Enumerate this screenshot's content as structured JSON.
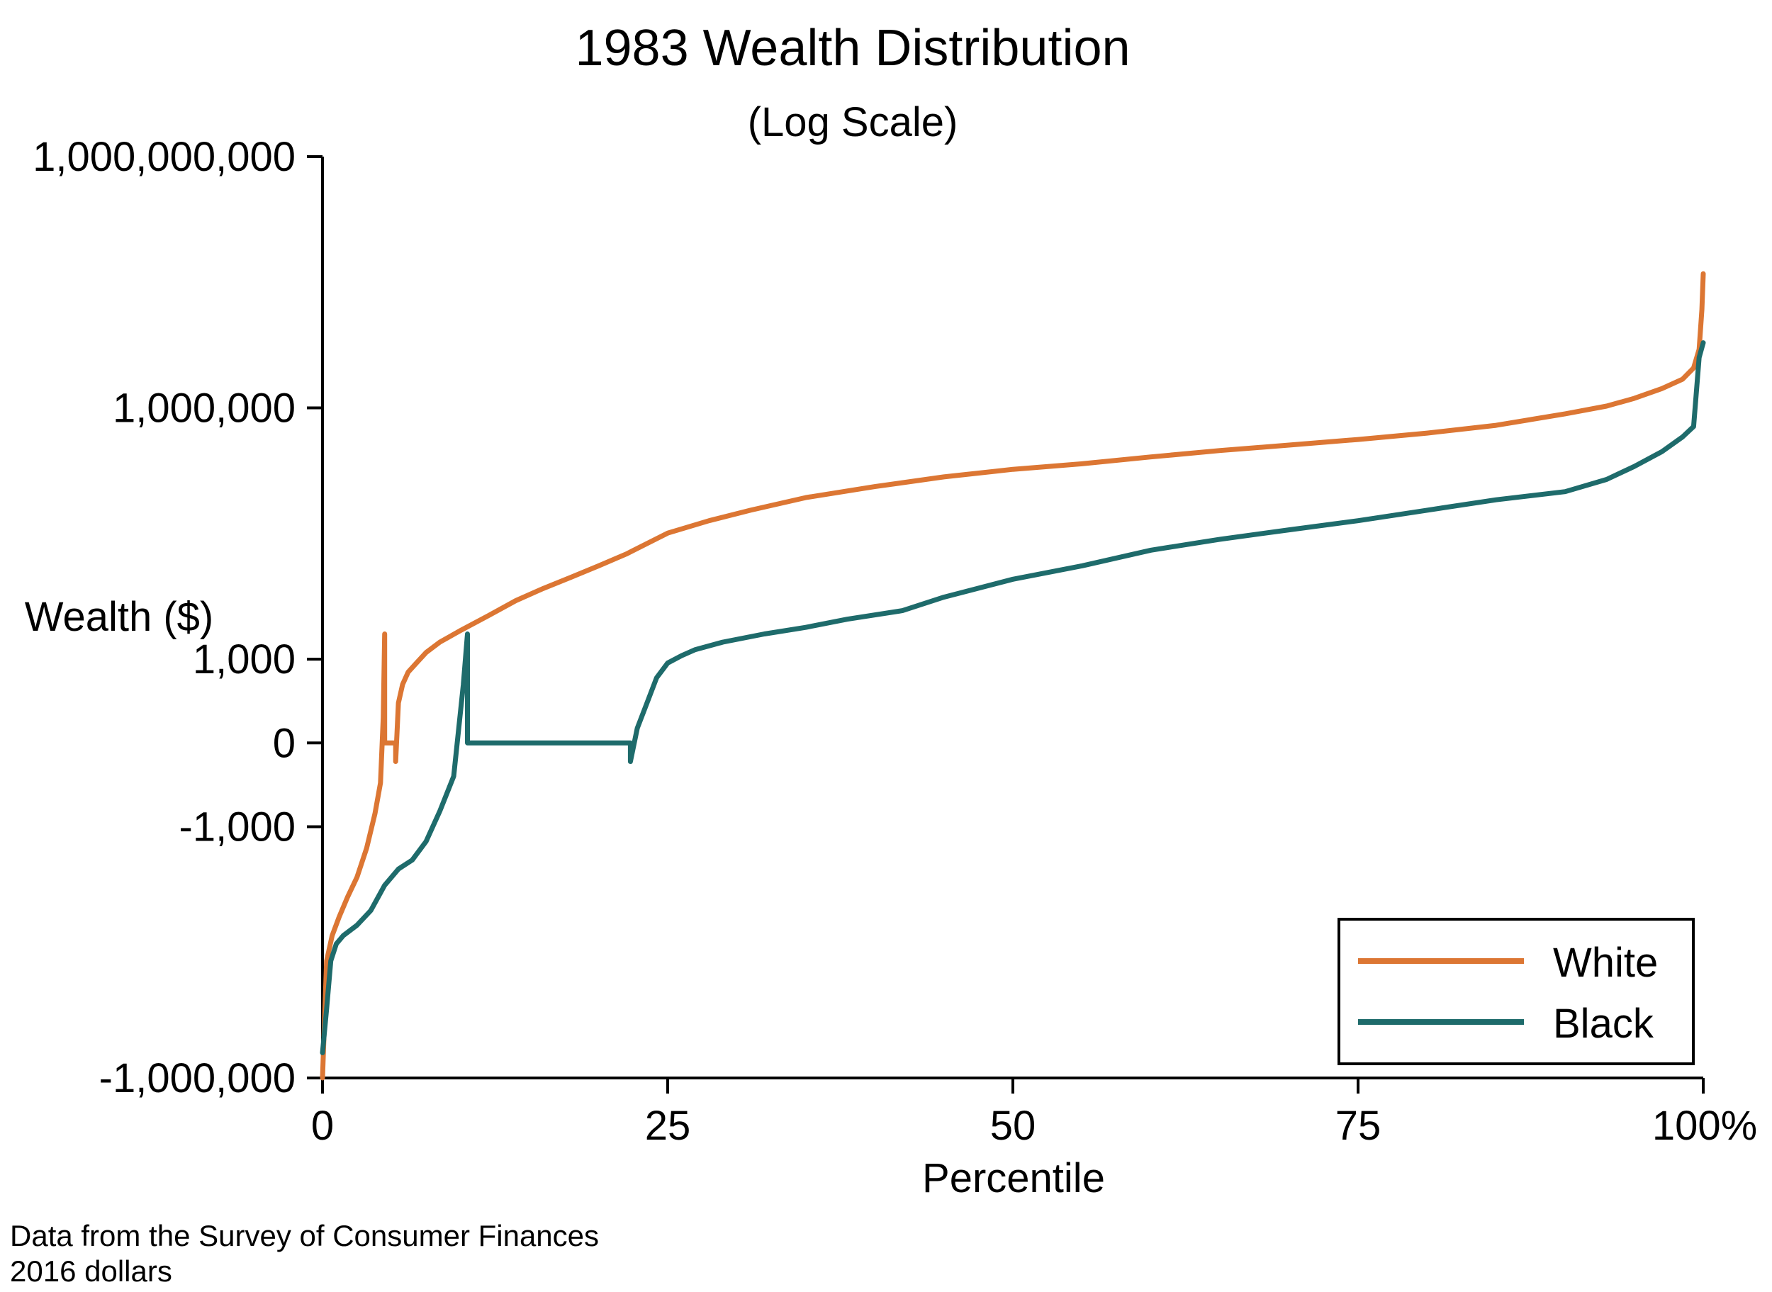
{
  "chart_data": {
    "type": "line",
    "title": "1983 Wealth Distribution",
    "subtitle": "(Log Scale)",
    "xlabel": "Percentile",
    "ylabel": "Wealth ($)",
    "x_scale": "linear",
    "y_scale": "symmetric-log",
    "xlim": [
      0,
      100
    ],
    "ylim": [
      -1000000,
      1000000000
    ],
    "x_ticks": [
      {
        "value": 0,
        "label": "0"
      },
      {
        "value": 25,
        "label": "25"
      },
      {
        "value": 50,
        "label": "50"
      },
      {
        "value": 75,
        "label": "75"
      },
      {
        "value": 100,
        "label": "100%"
      }
    ],
    "y_ticks": [
      {
        "value": -1000000,
        "label": "-1,000,000"
      },
      {
        "value": -1000,
        "label": "-1,000"
      },
      {
        "value": 0,
        "label": "0"
      },
      {
        "value": 1000,
        "label": "1,000"
      },
      {
        "value": 1000000,
        "label": "1,000,000"
      },
      {
        "value": 1000000000,
        "label": "1,000,000,000"
      }
    ],
    "grid": false,
    "legend_position": "bottom-right",
    "series": [
      {
        "name": "White",
        "color": "#dc7633",
        "x": [
          0,
          0.3,
          0.7,
          1.2,
          1.8,
          2.5,
          3.2,
          3.8,
          4.2,
          4.4,
          4.5,
          4.5,
          5.3,
          5.3,
          5.5,
          5.8,
          6.2,
          6.8,
          7.5,
          8.5,
          10,
          12,
          14,
          16,
          18,
          20,
          22,
          25,
          28,
          31,
          35,
          40,
          45,
          50,
          55,
          60,
          65,
          70,
          75,
          80,
          85,
          90,
          93,
          95,
          97,
          98.5,
          99.3,
          99.7,
          99.9,
          100
        ],
        "y": [
          -1000000,
          -40000,
          -20000,
          -12000,
          -7000,
          -4000,
          -1800,
          -700,
          -300,
          -50,
          -5,
          0,
          0,
          60,
          300,
          500,
          700,
          900,
          1200,
          1600,
          2200,
          3300,
          5000,
          7000,
          9500,
          13000,
          18000,
          32000,
          45000,
          60000,
          85000,
          115000,
          150000,
          185000,
          215000,
          260000,
          310000,
          360000,
          420000,
          500000,
          620000,
          850000,
          1050000,
          1300000,
          1700000,
          2200000,
          3000000,
          5000000,
          15000000,
          40000000
        ]
      },
      {
        "name": "Black",
        "color": "#1e6b6b",
        "x": [
          0,
          0.3,
          0.6,
          1.0,
          1.5,
          2.5,
          3.5,
          4.5,
          5.5,
          6.5,
          7.5,
          8.5,
          9.5,
          10.2,
          10.5,
          10.5,
          22.3,
          22.3,
          22.8,
          23.5,
          24.2,
          25,
          26,
          27,
          29,
          32,
          35,
          38,
          42,
          45,
          50,
          55,
          60,
          65,
          70,
          75,
          80,
          85,
          90,
          93,
          95,
          97,
          98.5,
          99.3,
          99.7,
          100
        ],
        "y": [
          -500000,
          -150000,
          -40000,
          -25000,
          -20000,
          -15000,
          -10000,
          -5000,
          -3200,
          -2500,
          -1500,
          -650,
          -250,
          -20,
          -5,
          0,
          0,
          60,
          150,
          300,
          600,
          900,
          1100,
          1300,
          1600,
          2000,
          2400,
          3000,
          3800,
          5500,
          9000,
          13000,
          20000,
          27000,
          35000,
          45000,
          60000,
          80000,
          100000,
          140000,
          200000,
          300000,
          450000,
          600000,
          4000000,
          6000000
        ]
      }
    ]
  },
  "footnote": {
    "line1": "Data from the Survey of Consumer Finances",
    "line2": "2016 dollars"
  }
}
